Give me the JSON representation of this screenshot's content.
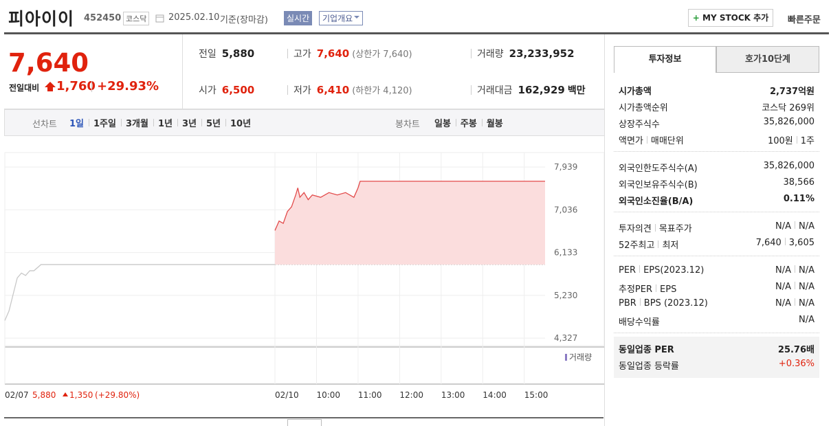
{
  "header": {
    "name": "피아이이",
    "code": "452450",
    "market": "코스닥",
    "date": "2025.02.10",
    "basis": "기준(장마감)",
    "realtime": "실시간",
    "overview": "기업개요",
    "mystock": "MY STOCK 추가",
    "quick_order": "빠른주문"
  },
  "quote": {
    "price": "7,640",
    "change_label": "전일대비",
    "change": "1,760",
    "rate": "+29.93%",
    "items": [
      {
        "label": "전일",
        "value": "5,880"
      },
      {
        "label": "고가",
        "value": "7,640",
        "note": "(상한가 7,640)",
        "color": "#e0220d"
      },
      {
        "label": "거래량",
        "value": "23,233,952"
      },
      {
        "label": "시가",
        "value": "6,500",
        "color": "#e0220d"
      },
      {
        "label": "저가",
        "value": "6,410",
        "note": "(하한가 4,120)",
        "color": "#e0220d"
      },
      {
        "label": "거래대금",
        "value": "162,929",
        "unit": "백만"
      }
    ]
  },
  "tabs": {
    "line_label": "선차트",
    "periods": [
      "1일",
      "1주일",
      "3개월",
      "1년",
      "3년",
      "5년",
      "10년"
    ],
    "candle_label": "봉차트",
    "candle_periods": [
      "일봉",
      "주봉",
      "월봉"
    ]
  },
  "chart": {
    "type": "line",
    "xlim": [
      0,
      13.0
    ],
    "xticks": [
      {
        "value": 0,
        "label": "02/07"
      },
      {
        "value": 6.5,
        "label": "02/10"
      },
      {
        "value": 7.5,
        "label": "10:00"
      },
      {
        "value": 8.5,
        "label": "11:00"
      },
      {
        "value": 9.5,
        "label": "12:00"
      },
      {
        "value": 10.5,
        "label": "13:00"
      },
      {
        "value": 11.5,
        "label": "14:00"
      },
      {
        "value": 12.5,
        "label": "15:00"
      }
    ],
    "ylim": [
      4170,
      8245
    ],
    "yticks": [
      {
        "value": 7939,
        "label": "7,939"
      },
      {
        "value": 7036,
        "label": "7,036"
      },
      {
        "value": 6133,
        "label": "6,133"
      },
      {
        "value": 5230,
        "label": "5,230"
      },
      {
        "value": 4327,
        "label": "4,327"
      }
    ],
    "base": 5880,
    "series": [
      {
        "color": "#c8c8c8",
        "x": [
          0,
          0.1,
          0.2,
          0.3,
          0.4,
          0.5,
          0.6,
          0.7,
          0.87,
          6.5
        ],
        "values": [
          4700,
          4900,
          5250,
          5600,
          5700,
          5650,
          5750,
          5750,
          5880,
          5880
        ]
      },
      {
        "color": "#e24a4a",
        "fill": "#fbdddd",
        "x": [
          6.5,
          6.6,
          6.7,
          6.8,
          6.9,
          7.0,
          7.05,
          7.1,
          7.2,
          7.3,
          7.4,
          7.6,
          7.8,
          8.0,
          8.2,
          8.4,
          8.5,
          8.55,
          13.0
        ],
        "values": [
          6600,
          6800,
          6750,
          7000,
          7100,
          7350,
          7500,
          7300,
          7400,
          7250,
          7350,
          7300,
          7400,
          7350,
          7400,
          7300,
          7500,
          7640,
          7640
        ]
      }
    ],
    "volume_label": "거래량",
    "prev_day": {
      "close": "5,880",
      "change": "1,350",
      "rate": "(+29.80%)"
    }
  },
  "info": {
    "tabs": [
      "투자정보",
      "호가10단계"
    ],
    "groups": [
      [
        {
          "label": [
            "시가총액"
          ],
          "value": [
            "2,737억원"
          ],
          "bold": true
        },
        {
          "label": [
            "시가총액순위"
          ],
          "value": [
            "코스닥 269위"
          ]
        },
        {
          "label": [
            "상장주식수"
          ],
          "value": [
            "35,826,000"
          ]
        },
        {
          "label": [
            "액면가",
            "매매단위"
          ],
          "value": [
            "100원",
            "1주"
          ]
        }
      ],
      [
        {
          "label": [
            "외국인한도주식수(A)"
          ],
          "value": [
            "35,826,000"
          ]
        },
        {
          "label": [
            "외국인보유주식수(B)"
          ],
          "value": [
            "38,566"
          ]
        },
        {
          "label": [
            "외국인소진율(B/A)"
          ],
          "value": [
            "0.11%"
          ],
          "bold": true
        }
      ],
      [
        {
          "label": [
            "투자의견",
            "목표주가"
          ],
          "value": [
            "N/A",
            "N/A"
          ]
        },
        {
          "label": [
            "52주최고",
            "최저"
          ],
          "value": [
            "7,640",
            "3,605"
          ]
        }
      ],
      [
        {
          "label": [
            "PER",
            "EPS(2023.12)"
          ],
          "value": [
            "N/A",
            "N/A"
          ]
        },
        {
          "label": [
            "추정PER",
            "EPS"
          ],
          "value": [
            "N/A",
            "N/A"
          ]
        },
        {
          "label": [
            "PBR",
            "BPS (2023.12)"
          ],
          "value": [
            "N/A",
            "N/A"
          ]
        },
        {
          "label": [
            "배당수익률"
          ],
          "value": [
            "N/A"
          ]
        }
      ],
      [
        {
          "label": [
            "동일업종 PER"
          ],
          "value": [
            "25.76배"
          ],
          "bold": true
        },
        {
          "label": [
            "동일업종 등락률"
          ],
          "value": [
            "+0.36%"
          ],
          "color": "#e0220d"
        }
      ]
    ]
  }
}
